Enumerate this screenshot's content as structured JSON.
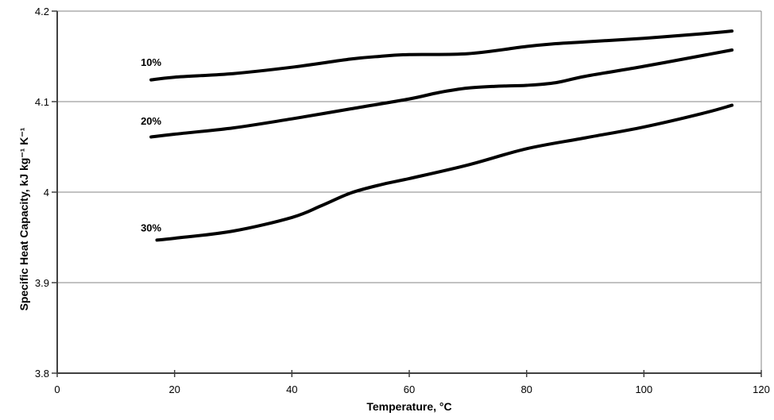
{
  "meta": {
    "background_color": "#ffffff",
    "axis_color": "#404040",
    "grid_color": "#848484",
    "curve_color": "#000000",
    "text_color": "#000000"
  },
  "chart_data": {
    "type": "line",
    "title": "",
    "xlabel": "Temperature, °C",
    "ylabel": "Specific Heat Capacity, kJ kg⁻¹ K⁻¹",
    "xlim": [
      0,
      120
    ],
    "ylim": [
      3.8,
      4.2
    ],
    "xticks": [
      0,
      20,
      40,
      60,
      80,
      100,
      120
    ],
    "xtick_labels": [
      "0",
      "20",
      "40",
      "60",
      "80",
      "100",
      "120"
    ],
    "yticks": [
      3.8,
      3.9,
      4.0,
      4.1,
      4.2
    ],
    "ytick_labels": [
      "3.8",
      "3.9",
      "4",
      "4.1",
      "4.2"
    ],
    "grid": "horizontal gridlines at y ticks, right and top border",
    "legend_position": "inline labels left of each curve",
    "series": [
      {
        "name": "10%",
        "label": {
          "text": "10%",
          "x": 16,
          "y": 4.144
        },
        "x": [
          16,
          20,
          30,
          40,
          50,
          55,
          60,
          70,
          80,
          85,
          90,
          100,
          110,
          115
        ],
        "y": [
          4.124,
          4.127,
          4.131,
          4.138,
          4.147,
          4.15,
          4.152,
          4.153,
          4.161,
          4.164,
          4.166,
          4.17,
          4.175,
          4.178
        ]
      },
      {
        "name": "20%",
        "label": {
          "text": "20%",
          "x": 16,
          "y": 4.079
        },
        "x": [
          16,
          20,
          30,
          40,
          50,
          60,
          65,
          70,
          75,
          80,
          85,
          90,
          100,
          110,
          115
        ],
        "y": [
          4.061,
          4.064,
          4.071,
          4.081,
          4.092,
          4.103,
          4.11,
          4.115,
          4.117,
          4.118,
          4.121,
          4.128,
          4.139,
          4.151,
          4.157
        ]
      },
      {
        "name": "30%",
        "label": {
          "text": "30%",
          "x": 16,
          "y": 3.961
        },
        "x": [
          17,
          20,
          30,
          40,
          45,
          50,
          55,
          60,
          70,
          80,
          90,
          100,
          110,
          115
        ],
        "y": [
          3.947,
          3.949,
          3.957,
          3.972,
          3.985,
          3.999,
          4.008,
          4.015,
          4.03,
          4.048,
          4.06,
          4.072,
          4.087,
          4.096
        ]
      }
    ]
  }
}
